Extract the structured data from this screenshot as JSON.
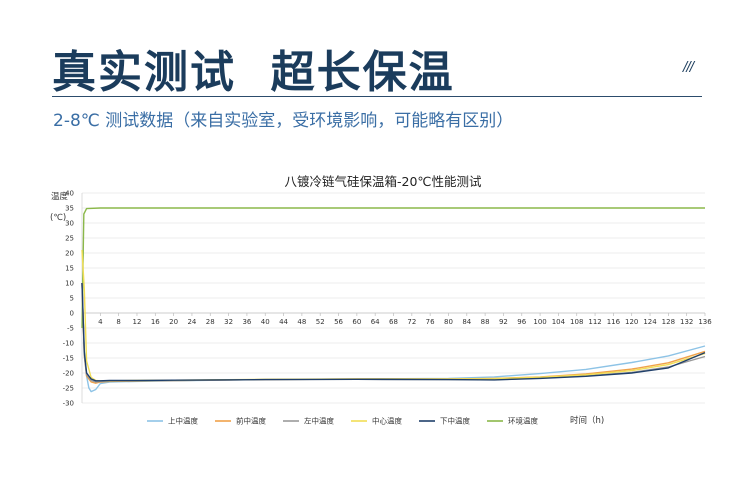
{
  "header": {
    "title": "真实测试  超长保温",
    "decoration": "///",
    "subtitle": "2-8℃ 测试数据（来自实验室，受环境影响，可能略有区别）"
  },
  "chart_data": {
    "type": "line",
    "title": "八镀冷链气硅保温箱-20℃性能测试",
    "ylabel_line1": "温度",
    "ylabel_line2": "(℃)",
    "xlabel": "时间（h)",
    "xlim": [
      0,
      136
    ],
    "ylim": [
      -30,
      40
    ],
    "x_ticks": [
      4,
      8,
      12,
      16,
      20,
      24,
      28,
      32,
      36,
      40,
      44,
      48,
      52,
      56,
      60,
      64,
      68,
      72,
      76,
      80,
      84,
      88,
      92,
      96,
      100,
      104,
      108,
      112,
      116,
      120,
      124,
      128,
      132,
      136
    ],
    "y_ticks": [
      40,
      35,
      30,
      25,
      20,
      15,
      10,
      5,
      0,
      -5,
      -10,
      -15,
      -20,
      -25,
      -30
    ],
    "grid": "horizontal",
    "legend_position": "bottom",
    "series": [
      {
        "name": "上中温度",
        "color": "#8dc3e6",
        "points": [
          [
            0,
            10
          ],
          [
            0.5,
            -12
          ],
          [
            1,
            -21
          ],
          [
            1.5,
            -25
          ],
          [
            2,
            -26.2
          ],
          [
            3,
            -25.5
          ],
          [
            4,
            -23.5
          ],
          [
            6,
            -23
          ],
          [
            12,
            -22.8
          ],
          [
            20,
            -22.6
          ],
          [
            40,
            -22.2
          ],
          [
            60,
            -22
          ],
          [
            80,
            -21.8
          ],
          [
            90,
            -21.3
          ],
          [
            100,
            -20.2
          ],
          [
            110,
            -18.8
          ],
          [
            120,
            -16.5
          ],
          [
            128,
            -14.3
          ],
          [
            136,
            -11
          ]
        ]
      },
      {
        "name": "前中温度",
        "color": "#f0a24a",
        "points": [
          [
            0,
            10
          ],
          [
            0.5,
            -14
          ],
          [
            1,
            -21
          ],
          [
            2,
            -23
          ],
          [
            3,
            -23.4
          ],
          [
            4,
            -23
          ],
          [
            6,
            -22.8
          ],
          [
            12,
            -22.7
          ],
          [
            20,
            -22.5
          ],
          [
            40,
            -22.2
          ],
          [
            60,
            -22
          ],
          [
            80,
            -22
          ],
          [
            90,
            -21.8
          ],
          [
            100,
            -21.3
          ],
          [
            110,
            -20.3
          ],
          [
            120,
            -18.7
          ],
          [
            128,
            -16.6
          ],
          [
            136,
            -12.8
          ]
        ]
      },
      {
        "name": "左中温度",
        "color": "#9a9a9a",
        "points": [
          [
            0,
            10
          ],
          [
            0.5,
            -14
          ],
          [
            1,
            -20.5
          ],
          [
            2,
            -22.5
          ],
          [
            3,
            -23
          ],
          [
            4,
            -22.8
          ],
          [
            6,
            -22.7
          ],
          [
            12,
            -22.6
          ],
          [
            20,
            -22.5
          ],
          [
            40,
            -22.2
          ],
          [
            60,
            -22.1
          ],
          [
            80,
            -22.2
          ],
          [
            90,
            -22.2
          ],
          [
            100,
            -21.7
          ],
          [
            110,
            -21
          ],
          [
            120,
            -19.8
          ],
          [
            128,
            -18
          ],
          [
            136,
            -14.5
          ]
        ]
      },
      {
        "name": "中心温度",
        "color": "#f2de55",
        "points": [
          [
            0,
            21
          ],
          [
            0.5,
            8
          ],
          [
            1,
            -16
          ],
          [
            2,
            -21.5
          ],
          [
            3,
            -22.5
          ],
          [
            4,
            -22.6
          ],
          [
            6,
            -22.6
          ],
          [
            12,
            -22.5
          ],
          [
            20,
            -22.4
          ],
          [
            40,
            -22.1
          ],
          [
            60,
            -22
          ],
          [
            80,
            -22
          ],
          [
            90,
            -21.9
          ],
          [
            100,
            -21.4
          ],
          [
            110,
            -20.6
          ],
          [
            120,
            -19.2
          ],
          [
            128,
            -17.2
          ],
          [
            136,
            -13.5
          ]
        ]
      },
      {
        "name": "下中温度",
        "color": "#1f3f6b",
        "points": [
          [
            0,
            10
          ],
          [
            0.5,
            -13
          ],
          [
            1,
            -20
          ],
          [
            2,
            -22
          ],
          [
            3,
            -22.6
          ],
          [
            4,
            -22.6
          ],
          [
            6,
            -22.5
          ],
          [
            12,
            -22.5
          ],
          [
            20,
            -22.4
          ],
          [
            40,
            -22.2
          ],
          [
            60,
            -22.1
          ],
          [
            80,
            -22.2
          ],
          [
            90,
            -22.3
          ],
          [
            100,
            -21.8
          ],
          [
            110,
            -21.1
          ],
          [
            120,
            -20
          ],
          [
            128,
            -18.3
          ],
          [
            136,
            -13.2
          ]
        ]
      },
      {
        "name": "环境温度",
        "color": "#8bb84a",
        "points": [
          [
            0,
            -5
          ],
          [
            0.4,
            33
          ],
          [
            1,
            34.8
          ],
          [
            4,
            35
          ],
          [
            136,
            35
          ]
        ]
      }
    ]
  }
}
